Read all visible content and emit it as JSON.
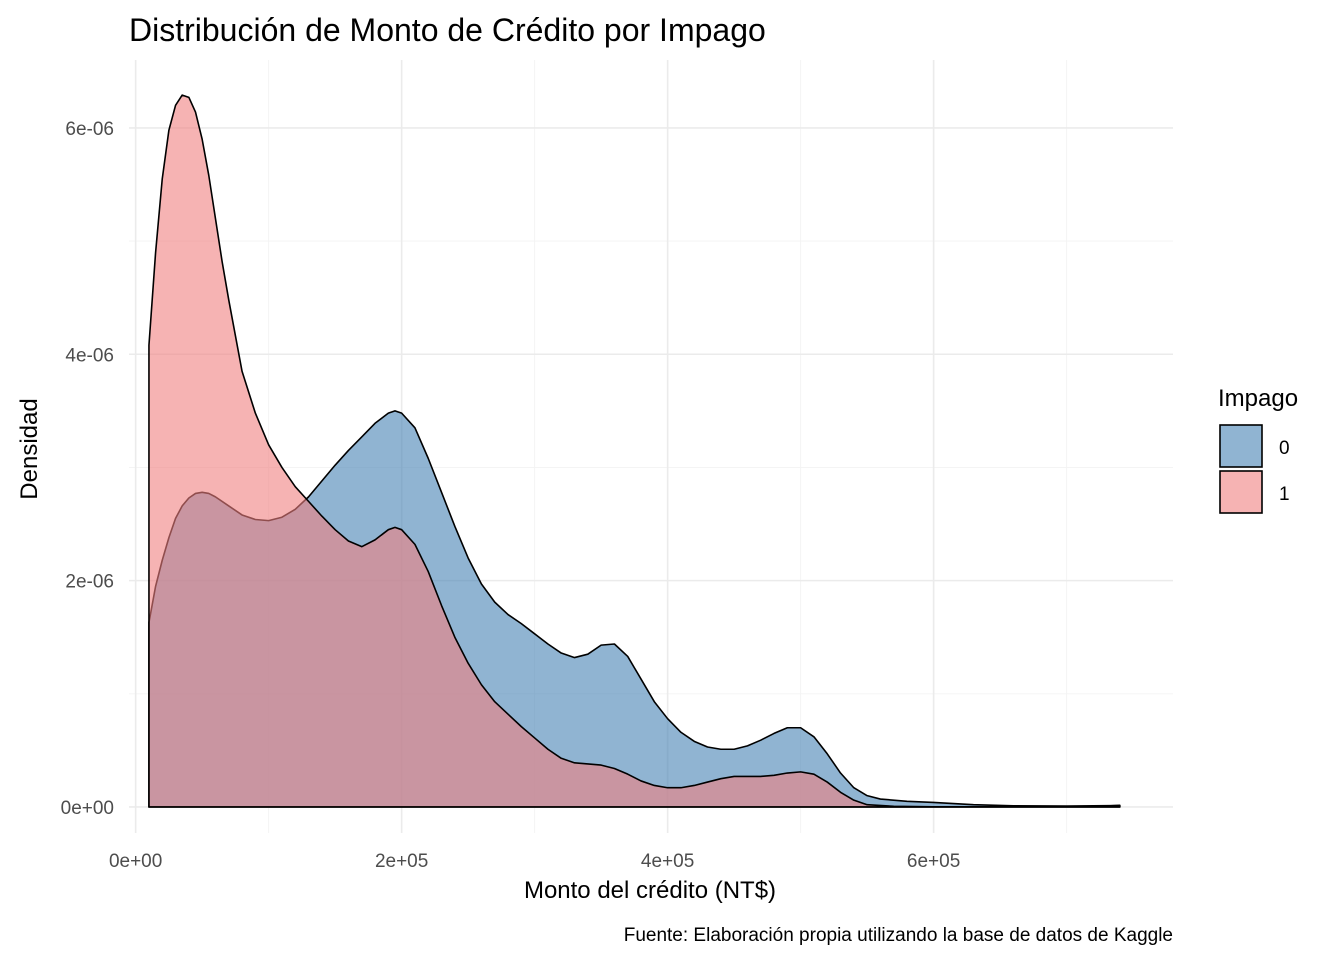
{
  "chart_data": {
    "type": "area",
    "title": "Distribución de Monto de Crédito por Impago",
    "xlabel": "Monto del crédito (NT$)",
    "ylabel": "Densidad",
    "caption": "Fuente: Elaboración propia utilizando la base de datos de Kaggle",
    "xlim": [
      -5000,
      780000
    ],
    "ylim": [
      -2.3e-07,
      6.6e-06
    ],
    "x_ticks": [
      {
        "value": 0,
        "label": "0e+00"
      },
      {
        "value": 200000,
        "label": "2e+05"
      },
      {
        "value": 400000,
        "label": "4e+05"
      },
      {
        "value": 600000,
        "label": "6e+05"
      }
    ],
    "y_ticks": [
      {
        "value": 0,
        "label": "0e+00"
      },
      {
        "value": 2e-06,
        "label": "2e-06"
      },
      {
        "value": 4e-06,
        "label": "4e-06"
      },
      {
        "value": 6e-06,
        "label": "6e-06"
      }
    ],
    "grid": true,
    "legend": {
      "title": "Impago",
      "position": "right"
    },
    "series": [
      {
        "name": "0",
        "color": "#4682b4",
        "points": [
          [
            10000,
            1.63e-06
          ],
          [
            15000,
            1.95e-06
          ],
          [
            20000,
            2.18e-06
          ],
          [
            25000,
            2.38e-06
          ],
          [
            30000,
            2.55e-06
          ],
          [
            35000,
            2.66e-06
          ],
          [
            40000,
            2.73e-06
          ],
          [
            45000,
            2.77e-06
          ],
          [
            50000,
            2.78e-06
          ],
          [
            55000,
            2.77e-06
          ],
          [
            60000,
            2.74e-06
          ],
          [
            70000,
            2.66e-06
          ],
          [
            80000,
            2.58e-06
          ],
          [
            90000,
            2.54e-06
          ],
          [
            100000,
            2.53e-06
          ],
          [
            110000,
            2.56e-06
          ],
          [
            120000,
            2.63e-06
          ],
          [
            130000,
            2.74e-06
          ],
          [
            140000,
            2.88e-06
          ],
          [
            150000,
            3.02e-06
          ],
          [
            160000,
            3.15e-06
          ],
          [
            170000,
            3.27e-06
          ],
          [
            180000,
            3.39e-06
          ],
          [
            190000,
            3.48e-06
          ],
          [
            195000,
            3.5e-06
          ],
          [
            200000,
            3.48e-06
          ],
          [
            210000,
            3.35e-06
          ],
          [
            220000,
            3.08e-06
          ],
          [
            230000,
            2.78e-06
          ],
          [
            240000,
            2.48e-06
          ],
          [
            250000,
            2.2e-06
          ],
          [
            260000,
            1.97e-06
          ],
          [
            270000,
            1.81e-06
          ],
          [
            280000,
            1.7e-06
          ],
          [
            290000,
            1.62e-06
          ],
          [
            300000,
            1.53e-06
          ],
          [
            310000,
            1.44e-06
          ],
          [
            320000,
            1.36e-06
          ],
          [
            330000,
            1.32e-06
          ],
          [
            340000,
            1.35e-06
          ],
          [
            350000,
            1.43e-06
          ],
          [
            360000,
            1.44e-06
          ],
          [
            370000,
            1.33e-06
          ],
          [
            380000,
            1.13e-06
          ],
          [
            390000,
            9.3e-07
          ],
          [
            400000,
            7.8e-07
          ],
          [
            410000,
            6.6e-07
          ],
          [
            420000,
            5.8e-07
          ],
          [
            430000,
            5.3e-07
          ],
          [
            440000,
            5.1e-07
          ],
          [
            450000,
            5.1e-07
          ],
          [
            460000,
            5.4e-07
          ],
          [
            470000,
            5.9e-07
          ],
          [
            480000,
            6.5e-07
          ],
          [
            490000,
            7e-07
          ],
          [
            500000,
            7e-07
          ],
          [
            510000,
            6.2e-07
          ],
          [
            520000,
            4.7e-07
          ],
          [
            530000,
            3e-07
          ],
          [
            540000,
            1.7e-07
          ],
          [
            550000,
            1e-07
          ],
          [
            560000,
            7e-08
          ],
          [
            580000,
            5e-08
          ],
          [
            600000,
            4e-08
          ],
          [
            630000,
            2e-08
          ],
          [
            660000,
            1e-08
          ],
          [
            700000,
            8e-09
          ],
          [
            740000,
            1.2e-08
          ]
        ]
      },
      {
        "name": "1",
        "color": "#f08080",
        "points": [
          [
            10000,
            4.08e-06
          ],
          [
            15000,
            4.9e-06
          ],
          [
            20000,
            5.55e-06
          ],
          [
            25000,
            5.98e-06
          ],
          [
            30000,
            6.2e-06
          ],
          [
            35000,
            6.29e-06
          ],
          [
            40000,
            6.27e-06
          ],
          [
            45000,
            6.14e-06
          ],
          [
            50000,
            5.9e-06
          ],
          [
            55000,
            5.58e-06
          ],
          [
            60000,
            5.2e-06
          ],
          [
            65000,
            4.82e-06
          ],
          [
            70000,
            4.48e-06
          ],
          [
            80000,
            3.85e-06
          ],
          [
            90000,
            3.48e-06
          ],
          [
            100000,
            3.2e-06
          ],
          [
            110000,
            3e-06
          ],
          [
            120000,
            2.83e-06
          ],
          [
            130000,
            2.7e-06
          ],
          [
            140000,
            2.57e-06
          ],
          [
            150000,
            2.45e-06
          ],
          [
            160000,
            2.35e-06
          ],
          [
            170000,
            2.3e-06
          ],
          [
            180000,
            2.36e-06
          ],
          [
            190000,
            2.45e-06
          ],
          [
            195000,
            2.47e-06
          ],
          [
            200000,
            2.45e-06
          ],
          [
            210000,
            2.32e-06
          ],
          [
            220000,
            2.08e-06
          ],
          [
            230000,
            1.78e-06
          ],
          [
            240000,
            1.5e-06
          ],
          [
            250000,
            1.27e-06
          ],
          [
            260000,
            1.08e-06
          ],
          [
            270000,
            9.3e-07
          ],
          [
            280000,
            8.2e-07
          ],
          [
            290000,
            7.1e-07
          ],
          [
            300000,
            6.1e-07
          ],
          [
            310000,
            5.1e-07
          ],
          [
            320000,
            4.3e-07
          ],
          [
            330000,
            3.9e-07
          ],
          [
            340000,
            3.8e-07
          ],
          [
            350000,
            3.7e-07
          ],
          [
            360000,
            3.4e-07
          ],
          [
            370000,
            2.9e-07
          ],
          [
            380000,
            2.3e-07
          ],
          [
            390000,
            1.9e-07
          ],
          [
            400000,
            1.7e-07
          ],
          [
            410000,
            1.7e-07
          ],
          [
            420000,
            1.9e-07
          ],
          [
            430000,
            2.2e-07
          ],
          [
            440000,
            2.5e-07
          ],
          [
            450000,
            2.7e-07
          ],
          [
            460000,
            2.7e-07
          ],
          [
            470000,
            2.7e-07
          ],
          [
            480000,
            2.8e-07
          ],
          [
            490000,
            3e-07
          ],
          [
            500000,
            3.1e-07
          ],
          [
            510000,
            2.9e-07
          ],
          [
            520000,
            2.2e-07
          ],
          [
            530000,
            1.3e-07
          ],
          [
            540000,
            6e-08
          ],
          [
            550000,
            2e-08
          ],
          [
            570000,
            6e-09
          ],
          [
            600000,
            2e-09
          ],
          [
            700000,
            2e-09
          ],
          [
            730000,
            8e-09
          ],
          [
            740000,
            1.5e-08
          ]
        ]
      }
    ]
  }
}
